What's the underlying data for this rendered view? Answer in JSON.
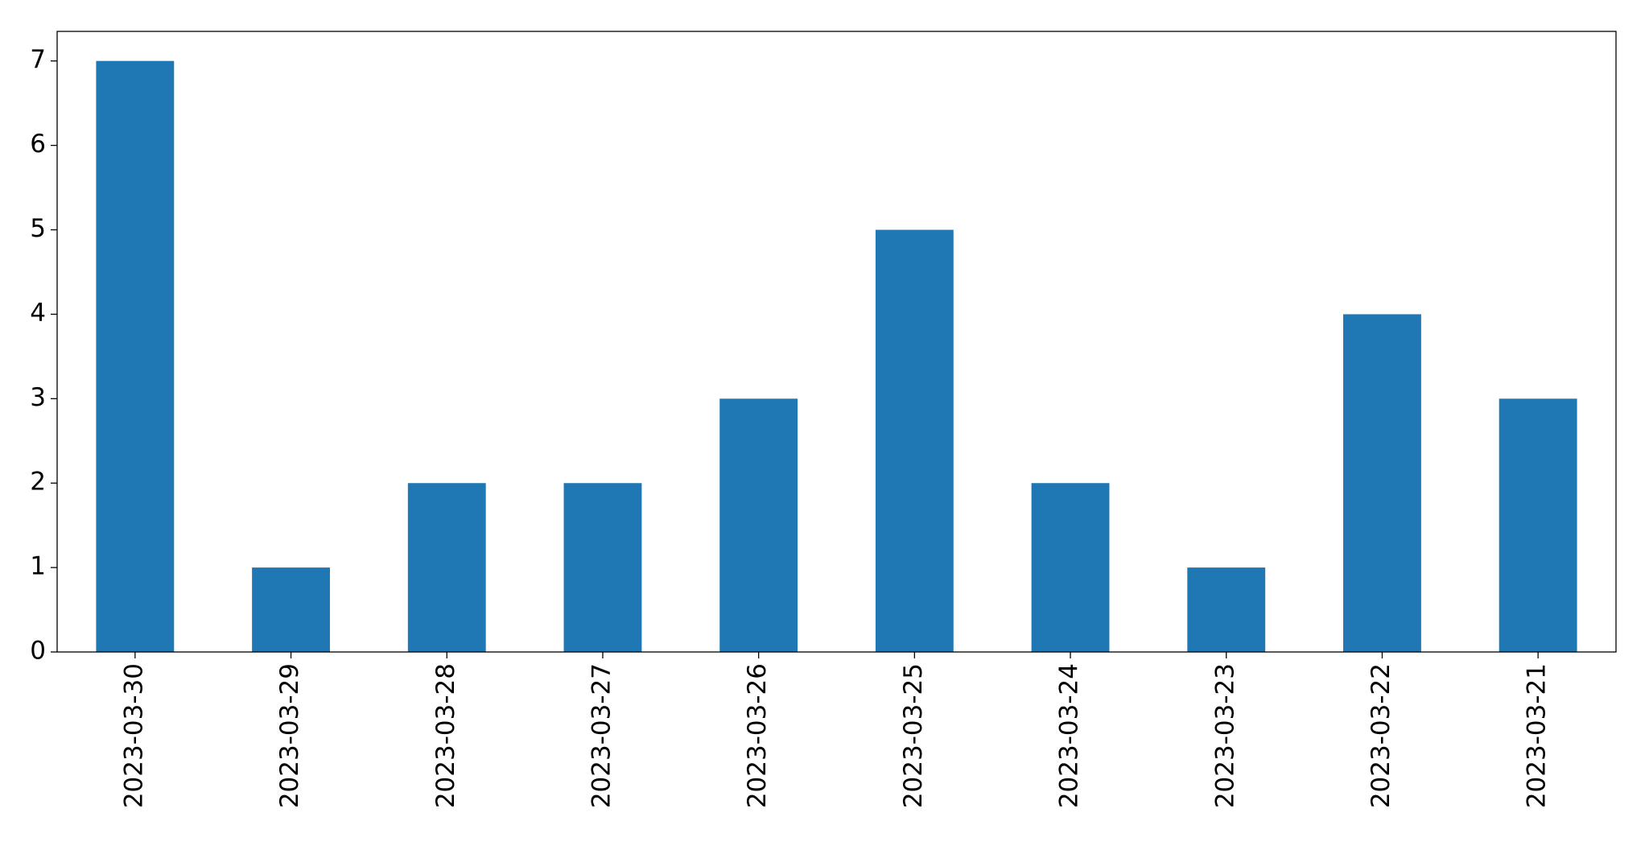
{
  "chart_data": {
    "type": "bar",
    "categories": [
      "2023-03-30",
      "2023-03-29",
      "2023-03-28",
      "2023-03-27",
      "2023-03-26",
      "2023-03-25",
      "2023-03-24",
      "2023-03-23",
      "2023-03-22",
      "2023-03-21"
    ],
    "values": [
      7,
      1,
      2,
      2,
      3,
      5,
      2,
      1,
      4,
      3
    ],
    "color": "#1f77b4",
    "ylim": [
      0,
      7.35
    ],
    "yticks": [
      0,
      1,
      2,
      3,
      4,
      5,
      6,
      7
    ],
    "grid": false
  }
}
